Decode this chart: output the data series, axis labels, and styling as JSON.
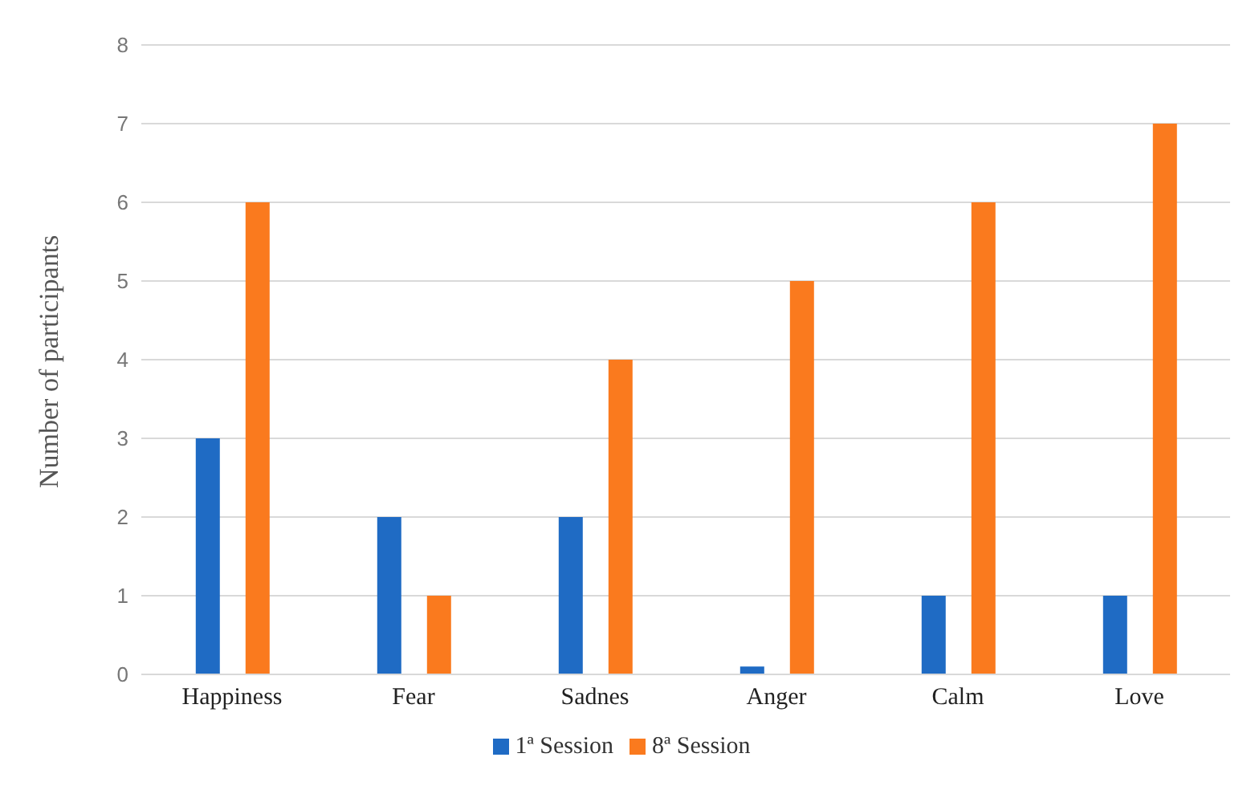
{
  "chart_data": {
    "type": "bar",
    "ylabel": "Number of participants",
    "categories": [
      "Happiness",
      "Fear",
      "Sadnes",
      "Anger",
      "Calm",
      "Love"
    ],
    "series": [
      {
        "name": "1ª Session",
        "color": "#1f6bc4",
        "values": [
          3,
          2,
          2,
          0.1,
          1,
          1
        ]
      },
      {
        "name": "8ª Session",
        "color": "#fa7a1e",
        "values": [
          6,
          1,
          4,
          5,
          6,
          7
        ]
      }
    ],
    "ylim": [
      0,
      8
    ],
    "yticks": [
      0,
      1,
      2,
      3,
      4,
      5,
      6,
      7,
      8
    ],
    "grid": "y",
    "legend": "bottom"
  }
}
